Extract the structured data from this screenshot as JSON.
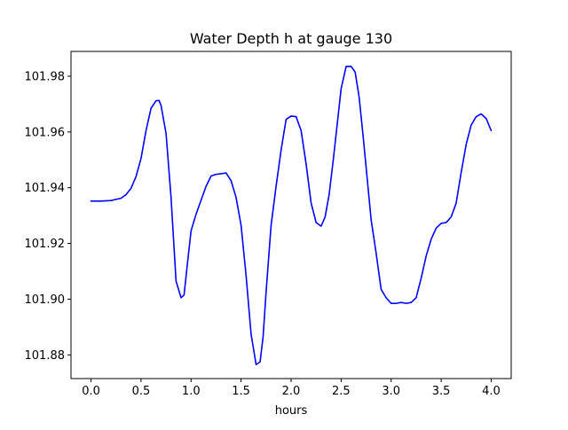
{
  "chart_data": {
    "type": "line",
    "title": "Water Depth h at gauge 130",
    "xlabel": "hours",
    "ylabel": "",
    "xlim": [
      -0.2,
      4.2
    ],
    "ylim": [
      101.8715,
      101.9889
    ],
    "grid": false,
    "x_ticks": [
      0.0,
      0.5,
      1.0,
      1.5,
      2.0,
      2.5,
      3.0,
      3.5,
      4.0
    ],
    "x_tick_labels": [
      "0.0",
      "0.5",
      "1.0",
      "1.5",
      "2.0",
      "2.5",
      "3.0",
      "3.5",
      "4.0"
    ],
    "y_ticks": [
      101.88,
      101.9,
      101.92,
      101.94,
      101.96,
      101.98
    ],
    "y_tick_labels": [
      "101.88",
      "101.90",
      "101.92",
      "101.94",
      "101.96",
      "101.98"
    ],
    "series": [
      {
        "color": "#0000ff",
        "x": [
          0.0,
          0.1,
          0.2,
          0.3,
          0.35,
          0.4,
          0.45,
          0.5,
          0.55,
          0.6,
          0.65,
          0.68,
          0.7,
          0.75,
          0.8,
          0.85,
          0.9,
          0.93,
          0.96,
          1.0,
          1.05,
          1.1,
          1.15,
          1.2,
          1.25,
          1.3,
          1.35,
          1.4,
          1.45,
          1.5,
          1.55,
          1.6,
          1.65,
          1.69,
          1.72,
          1.75,
          1.8,
          1.85,
          1.9,
          1.95,
          2.0,
          2.05,
          2.1,
          2.15,
          2.2,
          2.25,
          2.3,
          2.34,
          2.38,
          2.42,
          2.46,
          2.5,
          2.55,
          2.6,
          2.64,
          2.68,
          2.72,
          2.76,
          2.8,
          2.85,
          2.9,
          2.95,
          3.0,
          3.05,
          3.1,
          3.15,
          3.2,
          3.25,
          3.3,
          3.35,
          3.4,
          3.45,
          3.5,
          3.55,
          3.6,
          3.65,
          3.7,
          3.75,
          3.8,
          3.85,
          3.9,
          3.95,
          4.0
        ],
        "y": [
          101.9352,
          101.9352,
          101.9354,
          101.9362,
          101.9375,
          101.9398,
          101.944,
          101.9505,
          101.9605,
          101.9685,
          101.9712,
          101.9713,
          101.9695,
          101.9595,
          101.9365,
          101.9065,
          101.9005,
          101.9015,
          101.9115,
          101.9245,
          101.9305,
          101.9355,
          101.9405,
          101.9442,
          101.9448,
          101.945,
          101.9453,
          101.9425,
          101.9365,
          101.9265,
          101.9085,
          101.8875,
          101.8765,
          101.8775,
          101.8865,
          101.9025,
          101.9265,
          101.9405,
          101.9535,
          101.9645,
          101.9657,
          101.9655,
          101.9605,
          101.9485,
          101.9345,
          101.9275,
          101.9262,
          101.9295,
          101.9375,
          101.9495,
          101.9625,
          101.9755,
          101.9835,
          101.9835,
          101.9815,
          101.9725,
          101.9585,
          101.9435,
          101.9285,
          101.9165,
          101.9035,
          101.9005,
          101.8985,
          101.8985,
          101.8988,
          101.8985,
          101.8988,
          101.9005,
          101.9075,
          101.9155,
          101.9215,
          101.9255,
          101.9272,
          101.9275,
          101.9295,
          101.9345,
          101.9455,
          101.9555,
          101.9625,
          101.9655,
          101.9665,
          101.9648,
          101.9605
        ]
      }
    ]
  }
}
